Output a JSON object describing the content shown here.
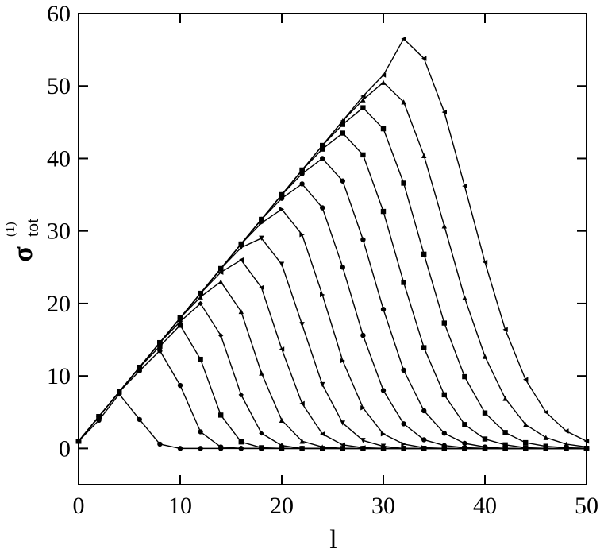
{
  "chart_data": {
    "type": "line",
    "x_label": "l",
    "y_label": {
      "main": "σ",
      "sub": "tot",
      "sup": "(1)"
    },
    "xlim": [
      0,
      50
    ],
    "xticks": [
      0,
      10,
      20,
      30,
      40,
      50
    ],
    "ylim": [
      -5,
      60
    ],
    "yticks": [
      0,
      10,
      20,
      30,
      40,
      50,
      60
    ],
    "x": [
      0,
      2,
      4,
      6,
      8,
      10,
      12,
      14,
      16,
      18,
      20,
      22,
      24,
      26,
      28,
      30,
      32,
      34,
      36,
      38,
      40,
      42,
      44,
      46,
      48,
      50
    ],
    "series": [
      {
        "color": "#000000",
        "marker": "circle",
        "values": [
          1,
          3.9,
          7.5,
          4.0,
          0.6,
          0,
          0,
          0,
          0,
          0,
          0,
          0,
          0,
          0,
          0,
          0,
          0,
          0,
          0,
          0,
          0,
          0,
          0,
          0,
          0,
          0
        ]
      },
      {
        "color": "#000000",
        "marker": "circle",
        "values": [
          1,
          4.4,
          7.8,
          10.7,
          13.5,
          8.7,
          2.3,
          0.2,
          0,
          0,
          0,
          0,
          0,
          0,
          0,
          0,
          0,
          0,
          0,
          0,
          0,
          0,
          0,
          0,
          0,
          0
        ]
      },
      {
        "color": "#000000",
        "marker": "square",
        "values": [
          1,
          4.4,
          7.8,
          11.2,
          14.1,
          17,
          12.3,
          4.6,
          0.9,
          0.1,
          0,
          0,
          0,
          0,
          0,
          0,
          0,
          0,
          0,
          0,
          0,
          0,
          0,
          0,
          0,
          0
        ]
      },
      {
        "color": "#000000",
        "marker": "diamond",
        "values": [
          1,
          4.4,
          7.8,
          11.2,
          14.6,
          17.5,
          20,
          15.6,
          7.4,
          2.1,
          0.4,
          0,
          0,
          0,
          0,
          0,
          0,
          0,
          0,
          0,
          0,
          0,
          0,
          0,
          0,
          0
        ]
      },
      {
        "color": "#000000",
        "marker": "triangle-up",
        "values": [
          1,
          4.4,
          7.8,
          11.2,
          14.6,
          18,
          20.9,
          23,
          18.9,
          10.4,
          3.9,
          1.0,
          0.2,
          0,
          0,
          0,
          0,
          0,
          0,
          0,
          0,
          0,
          0,
          0,
          0,
          0
        ]
      },
      {
        "color": "#000000",
        "marker": "triangle-left",
        "values": [
          1,
          4.4,
          7.8,
          11.2,
          14.6,
          18,
          21.4,
          24.3,
          26,
          22.2,
          13.7,
          6.2,
          2.0,
          0.5,
          0.1,
          0,
          0,
          0,
          0,
          0,
          0,
          0,
          0,
          0,
          0,
          0
        ]
      },
      {
        "color": "#000000",
        "marker": "triangle-down",
        "values": [
          1,
          4.4,
          7.8,
          11.2,
          14.6,
          18,
          21.4,
          24.8,
          27.7,
          29,
          25.4,
          17.1,
          8.8,
          3.5,
          1.1,
          0.3,
          0,
          0,
          0,
          0,
          0,
          0,
          0,
          0,
          0,
          0
        ]
      },
      {
        "color": "#000000",
        "marker": "triangle-right",
        "values": [
          1,
          4.4,
          7.8,
          11.2,
          14.6,
          18,
          21.4,
          24.8,
          28.2,
          31.1,
          33,
          29.5,
          21.2,
          12.1,
          5.6,
          2.0,
          0.6,
          0.1,
          0,
          0,
          0,
          0,
          0,
          0,
          0,
          0
        ]
      },
      {
        "color": "#000000",
        "marker": "circle",
        "values": [
          1,
          4.4,
          7.8,
          11.2,
          14.6,
          18,
          21.4,
          24.8,
          28.2,
          31.6,
          34.5,
          36.5,
          33.2,
          25.0,
          15.6,
          8.0,
          3.4,
          1.2,
          0.4,
          0.1,
          0,
          0,
          0,
          0,
          0,
          0
        ]
      },
      {
        "color": "#000000",
        "marker": "circle",
        "values": [
          1,
          4.4,
          7.8,
          11.2,
          14.6,
          18,
          21.4,
          24.8,
          28.2,
          31.6,
          35,
          37.9,
          40,
          36.9,
          28.8,
          19.2,
          10.8,
          5.2,
          2.1,
          0.7,
          0.2,
          0,
          0,
          0,
          0,
          0
        ]
      },
      {
        "color": "#000000",
        "marker": "square",
        "values": [
          1,
          4.4,
          7.8,
          11.2,
          14.6,
          18,
          21.4,
          24.8,
          28.2,
          31.6,
          35,
          38.4,
          41.3,
          43.5,
          40.5,
          32.7,
          22.9,
          13.9,
          7.4,
          3.3,
          1.3,
          0.5,
          0.1,
          0,
          0,
          0
        ]
      },
      {
        "color": "#000000",
        "marker": "square",
        "values": [
          1,
          4.4,
          7.8,
          11.2,
          14.6,
          18,
          21.4,
          24.8,
          28.2,
          31.6,
          35,
          38.4,
          41.8,
          44.7,
          47,
          44.1,
          36.6,
          26.8,
          17.3,
          9.9,
          4.9,
          2.2,
          0.8,
          0.3,
          0.1,
          0
        ]
      },
      {
        "color": "#000000",
        "marker": "triangle-up",
        "values": [
          1,
          4.4,
          7.8,
          11.2,
          14.6,
          18,
          21.4,
          24.8,
          28.2,
          31.6,
          35,
          38.4,
          41.8,
          45.2,
          48.1,
          50.5,
          47.8,
          40.4,
          30.7,
          20.8,
          12.7,
          6.9,
          3.3,
          1.5,
          0.6,
          0.2
        ]
      },
      {
        "color": "#000000",
        "marker": "triangle-left",
        "values": [
          1,
          4.4,
          7.8,
          11.2,
          14.6,
          18,
          21.4,
          24.8,
          28.2,
          31.6,
          35,
          38.4,
          41.8,
          45.2,
          48.6,
          51.5,
          56.5,
          53.8,
          46.4,
          36.2,
          25.7,
          16.4,
          9.5,
          5.0,
          2.4,
          1.0
        ]
      }
    ]
  }
}
